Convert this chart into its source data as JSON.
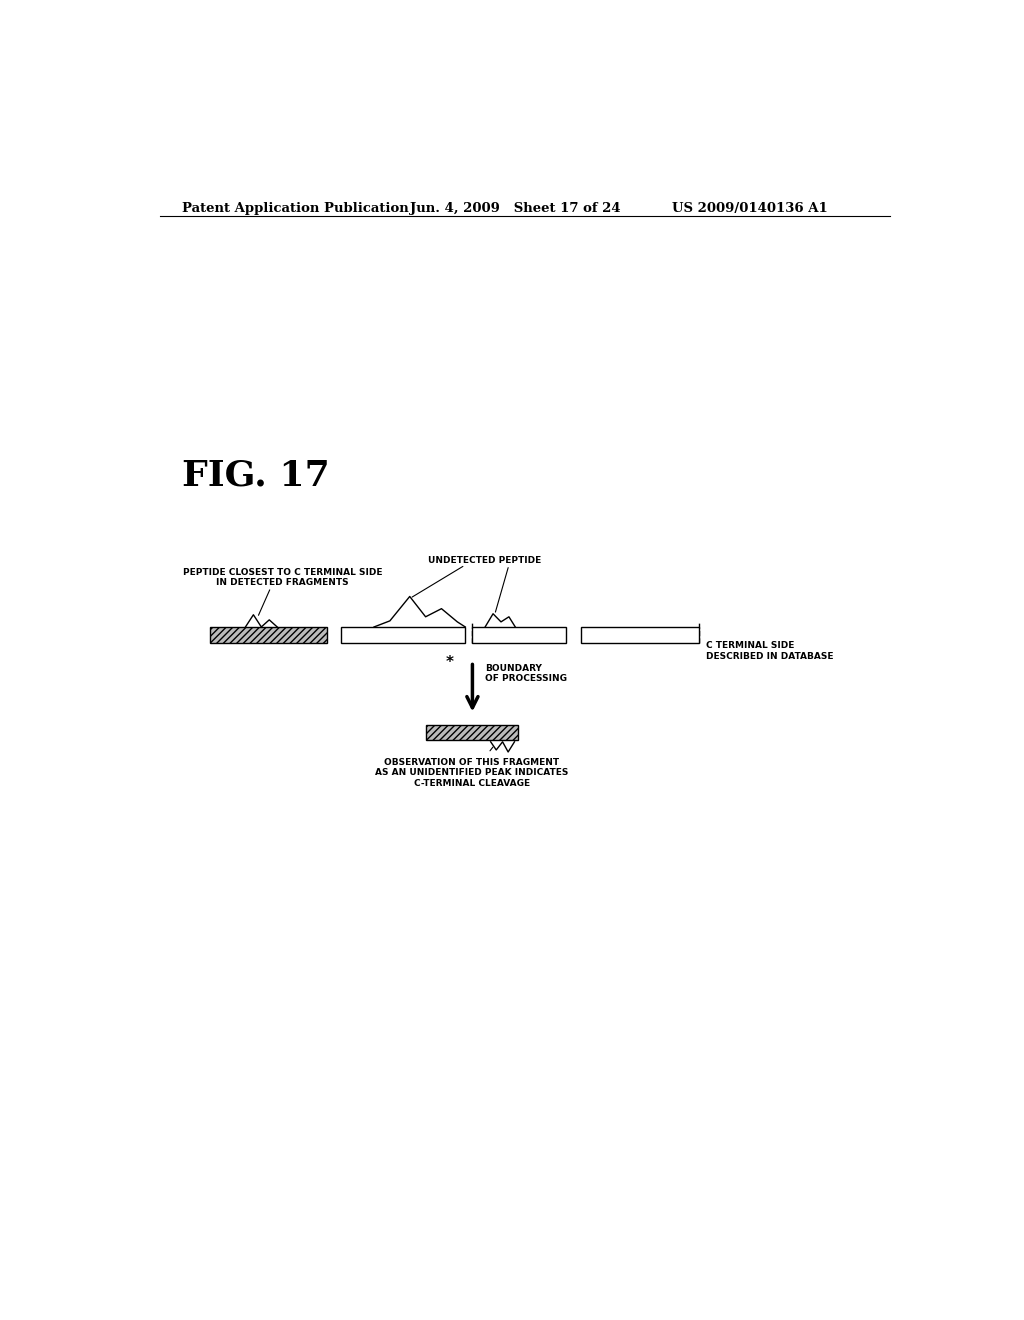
{
  "bg_color": "#ffffff",
  "header_left": "Patent Application Publication",
  "header_mid": "Jun. 4, 2009   Sheet 17 of 24",
  "header_right": "US 2009/0140136 A1",
  "fig_label": "FIG. 17",
  "label_peptide_closest": "PEPTIDE CLOSEST TO C TERMINAL SIDE\nIN DETECTED FRAGMENTS",
  "label_undetected": "UNDETECTED PEPTIDE",
  "label_boundary": "BOUNDARY\nOF PROCESSING",
  "label_c_terminal": "C TERMINAL SIDE\nDESCRIBED IN DATABASE",
  "label_observation": "OBSERVATION OF THIS FRAGMENT\nAS AN UNIDENTIFIED PEAK INDICATES\nC-TERMINAL CLEAVAGE",
  "box_edge_color": "#000000",
  "box_color_white": "#ffffff"
}
